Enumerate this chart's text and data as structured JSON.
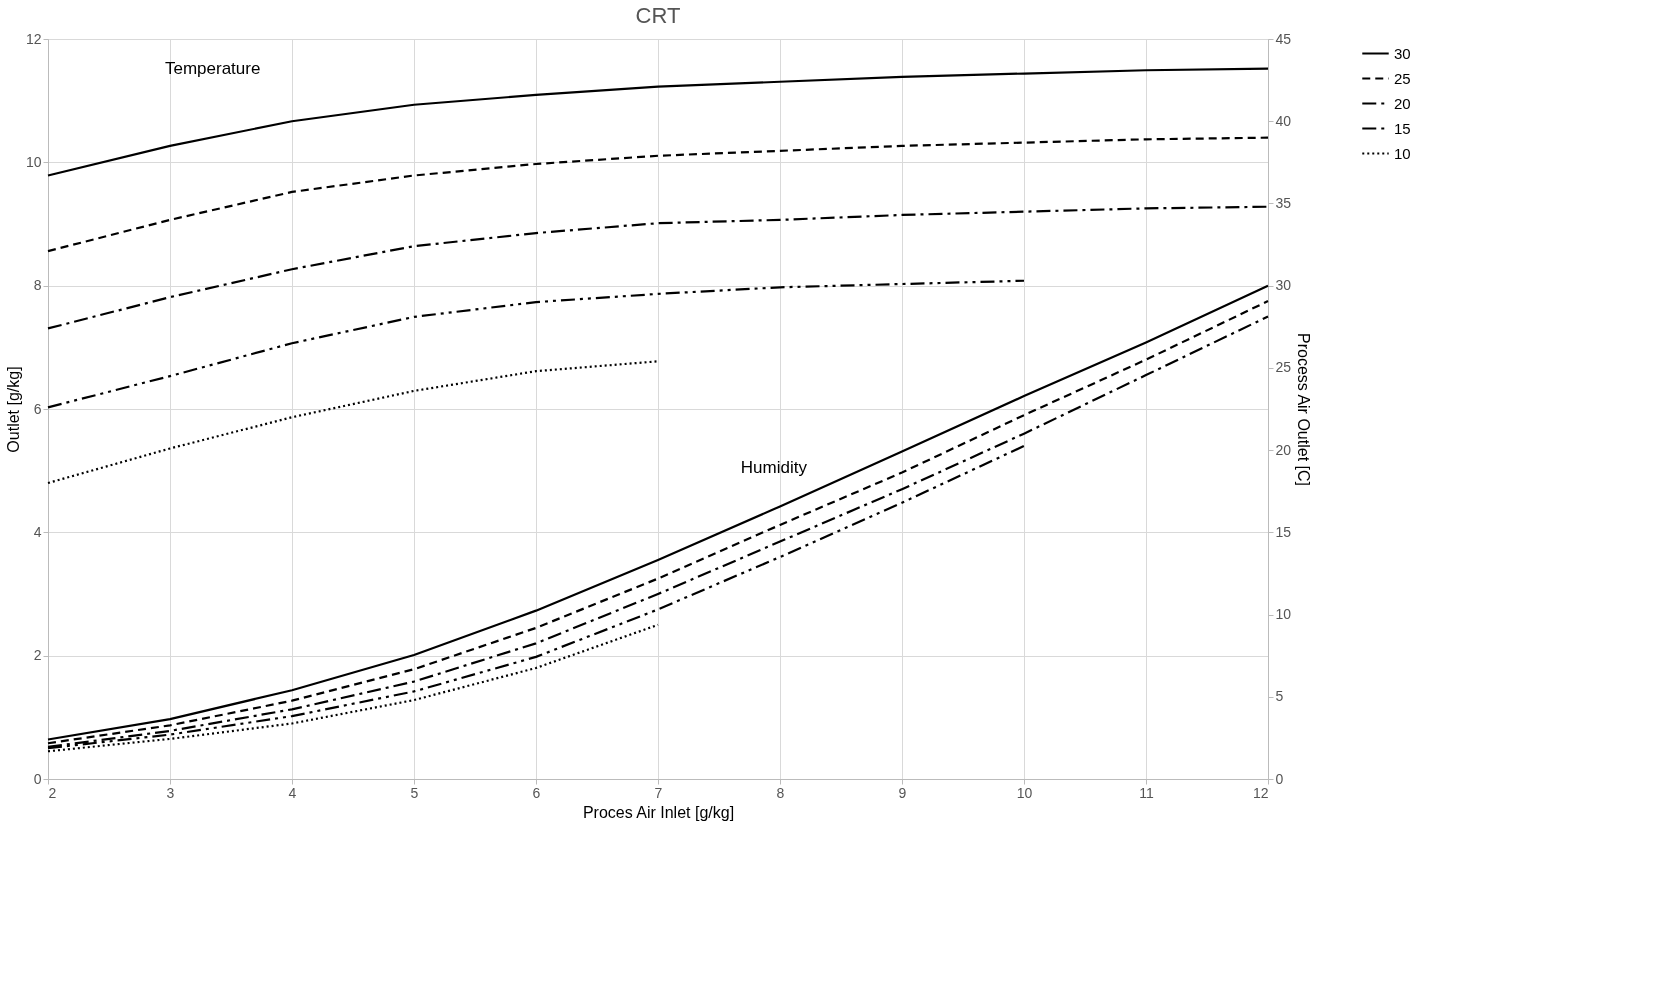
{
  "chart_data": {
    "type": "line",
    "title": "CRT",
    "xlabel": "Proces Air Inlet [g/kg]",
    "ylabel": "Outlet [g/kg]",
    "y2label": "Process Air Outlet [C]",
    "xlim": [
      2,
      12
    ],
    "xticks": [
      2,
      3,
      4,
      5,
      6,
      7,
      8,
      9,
      10,
      11,
      12
    ],
    "ylim": [
      0,
      12
    ],
    "yticks": [
      0,
      2,
      4,
      6,
      8,
      10,
      12
    ],
    "y2lim": [
      0,
      45
    ],
    "y2ticks": [
      0,
      5,
      10,
      15,
      20,
      25,
      30,
      35,
      40,
      45
    ],
    "grid": true,
    "legend": "right",
    "marker": "none",
    "annotations": [
      "Temperature",
      "Humidity"
    ],
    "series": [
      {
        "name": "30",
        "color": "#000000",
        "line_style": "solid",
        "axis": "y2",
        "x": [
          2,
          3,
          4,
          5,
          6,
          7,
          8,
          9,
          10,
          11,
          12
        ],
        "values": [
          36.7,
          38.5,
          40.0,
          41.0,
          41.6,
          42.1,
          42.4,
          42.7,
          42.9,
          43.1,
          43.2
        ]
      },
      {
        "name": "25",
        "color": "#000000",
        "line_style": "dashed",
        "axis": "y2",
        "x": [
          2,
          3,
          4,
          5,
          6,
          7,
          8,
          9,
          10,
          11,
          12
        ],
        "values": [
          32.1,
          34.0,
          35.7,
          36.7,
          37.4,
          37.9,
          38.2,
          38.5,
          38.7,
          38.9,
          39.0
        ]
      },
      {
        "name": "20",
        "color": "#000000",
        "line_style": "dashdot",
        "axis": "y2",
        "x": [
          2,
          3,
          4,
          5,
          6,
          7,
          8,
          9,
          10,
          11,
          12
        ],
        "values": [
          27.4,
          29.3,
          31.0,
          32.4,
          33.2,
          33.8,
          34.0,
          34.3,
          34.5,
          34.7,
          34.8
        ]
      },
      {
        "name": "15",
        "color": "#000000",
        "line_style": "dashdotdot",
        "axis": "y2",
        "x": [
          2,
          3,
          4,
          5,
          6,
          7,
          8,
          9,
          10
        ],
        "values": [
          22.6,
          24.5,
          26.5,
          28.1,
          29.0,
          29.5,
          29.9,
          30.1,
          30.3
        ]
      },
      {
        "name": "10",
        "color": "#000000",
        "line_style": "dotted",
        "axis": "y2",
        "x": [
          2,
          3,
          4,
          5,
          6,
          7
        ],
        "values": [
          18.0,
          20.1,
          22.0,
          23.6,
          24.8,
          25.4
        ]
      },
      {
        "name": "30",
        "color": "#000000",
        "line_style": "solid",
        "x": [
          2,
          3,
          4,
          5,
          6,
          7,
          8,
          9,
          10,
          11,
          12
        ],
        "values": [
          0.64,
          0.97,
          1.44,
          2.01,
          2.73,
          3.55,
          4.42,
          5.31,
          6.21,
          7.08,
          8.0
        ]
      },
      {
        "name": "25",
        "color": "#000000",
        "line_style": "dashed",
        "x": [
          2,
          3,
          4,
          5,
          6,
          7,
          8,
          9,
          10,
          11,
          12
        ],
        "values": [
          0.58,
          0.87,
          1.27,
          1.78,
          2.45,
          3.25,
          4.12,
          4.97,
          5.9,
          6.8,
          7.75
        ]
      },
      {
        "name": "20",
        "color": "#000000",
        "line_style": "dashdot",
        "x": [
          2,
          3,
          4,
          5,
          6,
          7,
          8,
          9,
          10,
          11,
          12
        ],
        "values": [
          0.52,
          0.78,
          1.13,
          1.58,
          2.2,
          3.0,
          3.85,
          4.7,
          5.6,
          6.55,
          7.5
        ]
      },
      {
        "name": "15",
        "color": "#000000",
        "line_style": "dashdotdot",
        "x": [
          2,
          3,
          4,
          5,
          6,
          7,
          8,
          9,
          10
        ],
        "values": [
          0.5,
          0.72,
          1.02,
          1.42,
          1.98,
          2.75,
          3.6,
          4.48,
          5.4
        ]
      },
      {
        "name": "10",
        "color": "#000000",
        "line_style": "dotted",
        "x": [
          2,
          3,
          4,
          5,
          6,
          7
        ],
        "values": [
          0.45,
          0.65,
          0.9,
          1.28,
          1.8,
          2.5
        ]
      }
    ]
  }
}
